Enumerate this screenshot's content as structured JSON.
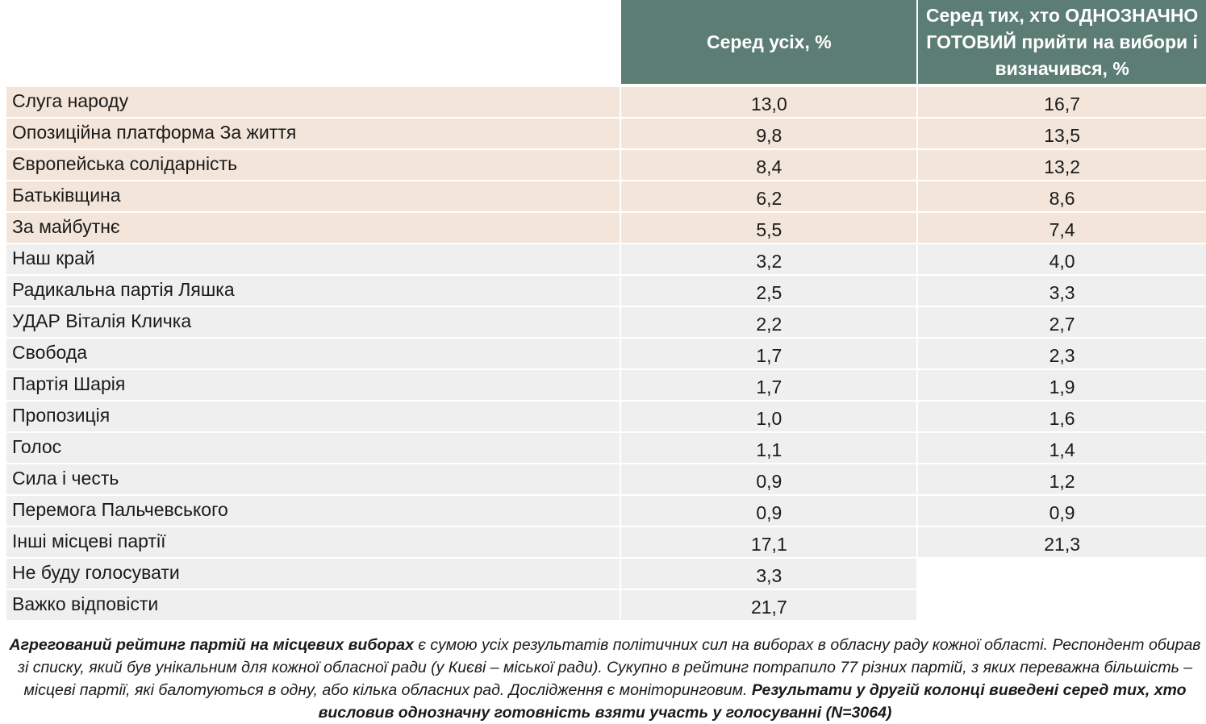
{
  "table": {
    "headers": {
      "col1": "Серед усіх, %",
      "col2": "Серед тих, хто ОДНОЗНАЧНО ГОТОВИЙ прийти на вибори і визначився, %"
    },
    "highlight_color": "#f3e5da",
    "header_color": "#5c7d74",
    "rows": [
      {
        "name": "Слуга народу",
        "v1": "13,0",
        "v2": "16,7"
      },
      {
        "name": "Опозиційна платформа За життя",
        "v1": "9,8",
        "v2": "13,5"
      },
      {
        "name": "Європейська солідарність",
        "v1": "8,4",
        "v2": "13,2"
      },
      {
        "name": "Батьківщина",
        "v1": "6,2",
        "v2": "8,6"
      },
      {
        "name": "За майбутнє",
        "v1": "5,5",
        "v2": "7,4"
      },
      {
        "name": "Наш край",
        "v1": "3,2",
        "v2": "4,0"
      },
      {
        "name": "Радикальна партія Ляшка",
        "v1": "2,5",
        "v2": "3,3"
      },
      {
        "name": "УДАР Віталія Кличка",
        "v1": "2,2",
        "v2": "2,7"
      },
      {
        "name": "Свобода",
        "v1": "1,7",
        "v2": "2,3"
      },
      {
        "name": "Партія Шарія",
        "v1": "1,7",
        "v2": "1,9"
      },
      {
        "name": "Пропозиція",
        "v1": "1,0",
        "v2": "1,6"
      },
      {
        "name": "Голос",
        "v1": "1,1",
        "v2": "1,4"
      },
      {
        "name": "Сила і честь",
        "v1": "0,9",
        "v2": "1,2"
      },
      {
        "name": "Перемога Пальчевського",
        "v1": "0,9",
        "v2": "0,9"
      },
      {
        "name": "Інші місцеві партії",
        "v1": "17,1",
        "v2": "21,3"
      },
      {
        "name": "Не буду голосувати",
        "v1": "3,3",
        "v2": ""
      },
      {
        "name": "Важко відповісти",
        "v1": "21,7",
        "v2": ""
      }
    ]
  },
  "footnote": {
    "bold_start": "Агрегований рейтинг партій на місцевих виборах",
    "text": " є сумою усіх результатів політичних сил на виборах в обласну раду кожної області. Респондент обирав зі списку, який був унікальним для кожної обласної ради (у Києві – міської ради). Сукупно в рейтинг потрапило 77 різних партій, з яких переважна більшість – місцеві партії, які балотуються в одну, або кілька обласних рад. Дослідження є моніторинговим. ",
    "bold_end": "Результати у другій колонці виведені серед тих, хто висловив однозначну готовність взяти участь у голосуванні (N=3064)"
  }
}
